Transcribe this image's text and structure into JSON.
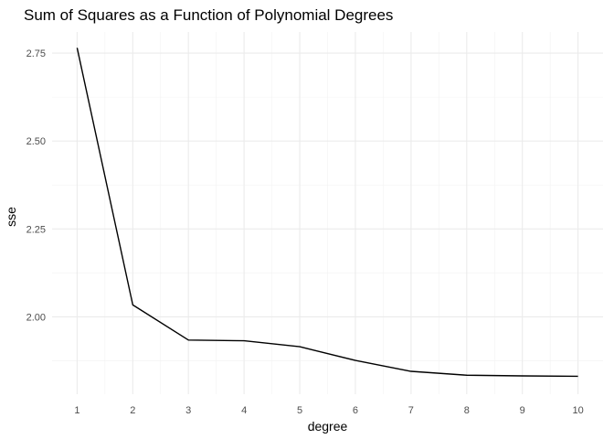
{
  "chart_data": {
    "type": "line",
    "title": "Sum of Squares as a Function of Polynomial Degrees",
    "xlabel": "degree",
    "ylabel": "sse",
    "x": [
      1,
      2,
      3,
      4,
      5,
      6,
      7,
      8,
      9,
      10
    ],
    "values": [
      2.765,
      2.034,
      1.934,
      1.932,
      1.915,
      1.876,
      1.845,
      1.834,
      1.832,
      1.831
    ],
    "x_ticks": [
      "1",
      "2",
      "3",
      "4",
      "5",
      "6",
      "7",
      "8",
      "9",
      "10"
    ],
    "y_ticks": [
      "2.00",
      "2.25",
      "2.50",
      "2.75"
    ],
    "xlim": [
      0.55,
      10.45
    ],
    "ylim": [
      1.78,
      2.81
    ],
    "grid": true,
    "line_color": "#000000"
  }
}
